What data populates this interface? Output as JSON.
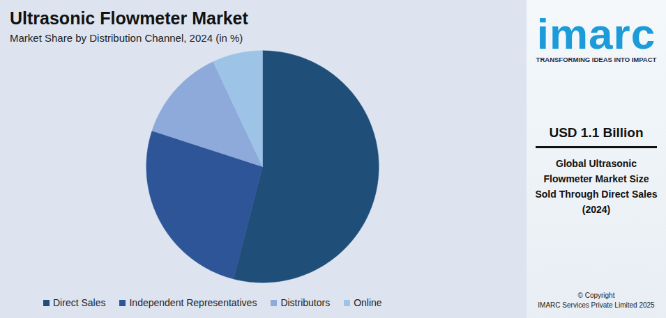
{
  "chart_data": {
    "type": "pie",
    "title": "Ultrasonic Flowmeter Market",
    "subtitle": "Market Share by Distribution Channel, 2024 (in %)",
    "categories": [
      "Direct Sales",
      "Independent Representatives",
      "Distributors",
      "Online"
    ],
    "values": [
      54,
      26,
      13,
      7
    ],
    "colors": [
      "#1f4e79",
      "#2e5597",
      "#8eaadb",
      "#9dc3e6"
    ],
    "legend": "bottom",
    "tick_labels": false
  },
  "side_panel": {
    "logo": "imarc",
    "tagline": "TRANSFORMING IDEAS INTO IMPACT",
    "headline": "USD 1.1 Billion",
    "description": "Global Ultrasonic Flowmeter Market Size Sold Through Direct Sales (2024)",
    "copyright": [
      "© Copyright",
      "IMARC Services Private Limited 2025"
    ]
  }
}
